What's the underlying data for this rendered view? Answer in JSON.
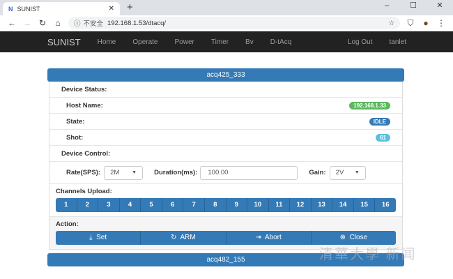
{
  "browser": {
    "tab_title": "SUNIST",
    "tab_icon": "N",
    "url_warning": "不安全",
    "url": "192.168.1.53/dtacq/"
  },
  "navbar": {
    "brand": "SUNIST",
    "items": [
      "Home",
      "Operate",
      "Power",
      "Timer",
      "Bv",
      "D-tAcq"
    ],
    "logout": "Log Out",
    "user": "tanlet"
  },
  "panel": {
    "title": "acq425_333",
    "device_status_label": "Device Status:",
    "host_label": "Host Name:",
    "host_value": "192.168.1.33",
    "state_label": "State:",
    "state_value": "IDLE",
    "shot_label": "Shot:",
    "shot_value": "61",
    "device_control_label": "Device Control:",
    "rate_label": "Rate(SPS):",
    "rate_value": "2M",
    "duration_label": "Duration(ms):",
    "duration_value": "100.00",
    "gain_label": "Gain:",
    "gain_value": "2V",
    "channels_label": "Channels Upload:",
    "channels": [
      "1",
      "2",
      "3",
      "4",
      "5",
      "6",
      "7",
      "8",
      "9",
      "10",
      "11",
      "12",
      "13",
      "14",
      "15",
      "16"
    ],
    "action_label": "Action:",
    "actions": [
      {
        "label": "Set",
        "icon": "download-icon"
      },
      {
        "label": "ARM",
        "icon": "refresh-icon"
      },
      {
        "label": "Abort",
        "icon": "sign-out-icon"
      },
      {
        "label": "Close",
        "icon": "close-circle-icon"
      }
    ]
  },
  "panel2": {
    "title": "acq482_155"
  },
  "colors": {
    "primary": "#337ab7",
    "success": "#5cb85c",
    "info": "#5bc0de",
    "navbar": "#222222"
  },
  "watermark": "清华大学 新闻 NEWS"
}
